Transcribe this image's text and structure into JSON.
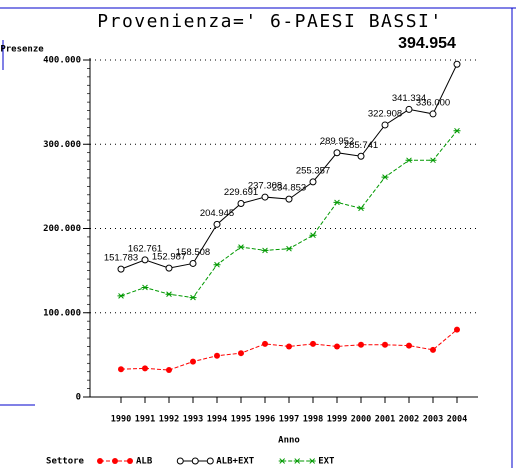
{
  "chart_data": {
    "type": "line",
    "title": "Provenienza=' 6-PAESI BASSI'",
    "ylabel": "Presenze",
    "xlabel": "Anno",
    "legend_title": "Settore",
    "categories": [
      "1990",
      "1991",
      "1992",
      "1993",
      "1994",
      "1995",
      "1996",
      "1997",
      "1998",
      "1999",
      "2000",
      "2001",
      "2002",
      "2003",
      "2004"
    ],
    "series": [
      {
        "name": "ALB",
        "color": "#ff0000",
        "marker": "dot",
        "dash": true,
        "values": [
          33000,
          34000,
          32000,
          42000,
          49000,
          52000,
          63000,
          60000,
          63000,
          60000,
          62000,
          62000,
          61000,
          56000,
          80000
        ]
      },
      {
        "name": "ALB+EXT",
        "color": "#000000",
        "marker": "circle",
        "dash": false,
        "values": [
          151783,
          162761,
          152987,
          158508,
          204945,
          229691,
          237308,
          234853,
          255357,
          289952,
          285741,
          322908,
          341334,
          336000,
          394954
        ],
        "value_labels": [
          "151.783",
          "162.761",
          "152.987",
          "158.508",
          "204.945",
          "229.691",
          "237.308",
          "234.853",
          "255.357",
          "289.952",
          "285.741",
          "322.908",
          "341.334",
          "336.000",
          "394.954"
        ]
      },
      {
        "name": "EXT",
        "color": "#009900",
        "marker": "star",
        "dash": true,
        "values": [
          120000,
          130000,
          122000,
          118000,
          157000,
          178000,
          174000,
          176000,
          192000,
          231000,
          224000,
          261000,
          281000,
          281000,
          316000
        ]
      }
    ],
    "ylim": [
      0,
      400000
    ],
    "yticks": [
      0,
      {
        "value": 100000,
        "label": "100.000"
      },
      {
        "value": 200000,
        "label": "200.000"
      },
      {
        "value": 300000,
        "label": "300.000"
      },
      {
        "value": 400000,
        "label": "400.000"
      }
    ],
    "grid": true
  }
}
